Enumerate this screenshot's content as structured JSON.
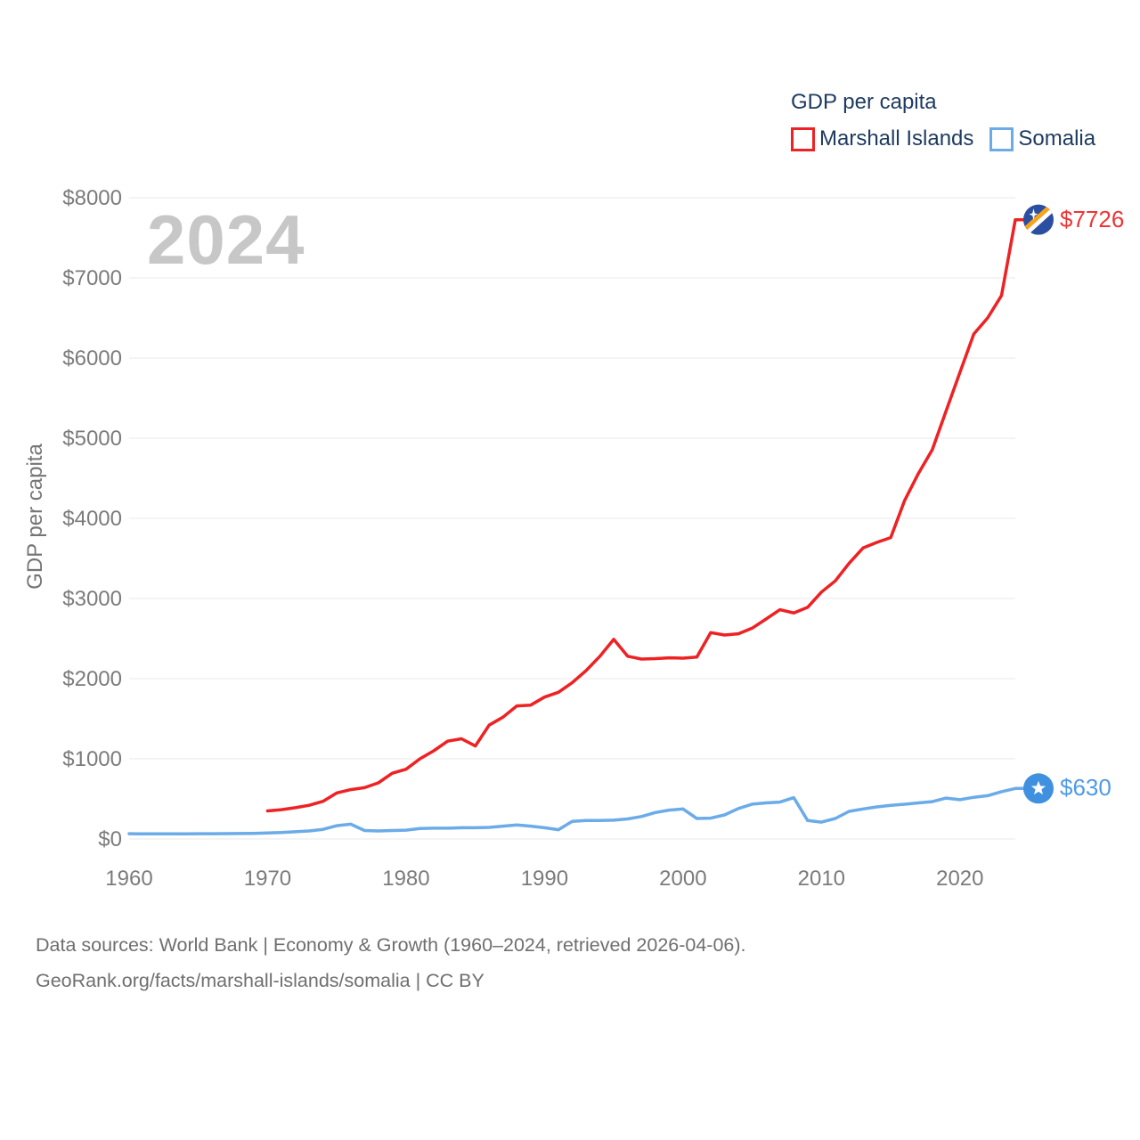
{
  "page": {
    "background": "#ffffff"
  },
  "legend": {
    "title": "GDP per capita",
    "items": [
      {
        "label": "Marshall Islands",
        "color": "#ee2123"
      },
      {
        "label": "Somalia",
        "color": "#6aabe8"
      }
    ]
  },
  "watermark": "2024",
  "footer": {
    "line1": "Data sources: World Bank | Economy & Growth (1960–2024, retrieved 2026-04-06).",
    "line2": "GeoRank.org/facts/marshall-islands/somalia | CC BY"
  },
  "chart_data": {
    "type": "line",
    "title": "GDP per capita",
    "ylabel": "GDP per capita",
    "xlabel": "",
    "xlim": [
      1960,
      2024
    ],
    "ylim": [
      0,
      8000
    ],
    "grid": "horizontal-only",
    "grid_color": "#ededed",
    "tick_color": "#7b7b7b",
    "x_ticks": [
      {
        "value": 1960,
        "label": "1960"
      },
      {
        "value": 1970,
        "label": "1970"
      },
      {
        "value": 1980,
        "label": "1980"
      },
      {
        "value": 1990,
        "label": "1990"
      },
      {
        "value": 2000,
        "label": "2000"
      },
      {
        "value": 2010,
        "label": "2010"
      },
      {
        "value": 2020,
        "label": "2020"
      }
    ],
    "y_ticks": [
      {
        "value": 0,
        "label": "$0"
      },
      {
        "value": 1000,
        "label": "$1000"
      },
      {
        "value": 2000,
        "label": "$2000"
      },
      {
        "value": 3000,
        "label": "$3000"
      },
      {
        "value": 4000,
        "label": "$4000"
      },
      {
        "value": 5000,
        "label": "$5000"
      },
      {
        "value": 6000,
        "label": "$6000"
      },
      {
        "value": 7000,
        "label": "$7000"
      },
      {
        "value": 8000,
        "label": "$8000"
      }
    ],
    "series": [
      {
        "name": "Marshall Islands",
        "color": "#ee2123",
        "label_color": "#ee3434",
        "start_year": 1970,
        "end_value_label": "$7726",
        "values": [
          350,
          365,
          390,
          420,
          470,
          575,
          615,
          640,
          700,
          820,
          870,
          1000,
          1100,
          1220,
          1250,
          1160,
          1420,
          1520,
          1660,
          1670,
          1770,
          1830,
          1950,
          2100,
          2280,
          2490,
          2280,
          2245,
          2250,
          2260,
          2255,
          2270,
          2575,
          2545,
          2560,
          2630,
          2745,
          2860,
          2820,
          2890,
          3080,
          3220,
          3440,
          3630,
          3700,
          3760,
          4220,
          4560,
          4855,
          5340,
          5820,
          6300,
          6500,
          6780,
          7726
        ]
      },
      {
        "name": "Somalia",
        "color": "#6aabe8",
        "label_color": "#4f9ae8",
        "start_year": 1960,
        "end_value_label": "$630",
        "values": [
          65,
          63,
          63,
          64,
          64,
          65,
          66,
          67,
          68,
          70,
          75,
          80,
          90,
          100,
          120,
          165,
          185,
          105,
          100,
          105,
          110,
          130,
          135,
          135,
          140,
          140,
          145,
          160,
          175,
          160,
          140,
          115,
          220,
          230,
          230,
          235,
          250,
          280,
          330,
          360,
          375,
          255,
          260,
          300,
          380,
          435,
          450,
          460,
          515,
          230,
          210,
          255,
          345,
          375,
          400,
          420,
          433,
          450,
          466,
          510,
          490,
          520,
          540,
          590,
          630
        ]
      }
    ],
    "annotations": [
      {
        "text": "$7726",
        "series": "Marshall Islands",
        "year": 2024
      },
      {
        "text": "$630",
        "series": "Somalia",
        "year": 2024
      },
      {
        "text": "2024",
        "role": "year-watermark"
      }
    ]
  }
}
